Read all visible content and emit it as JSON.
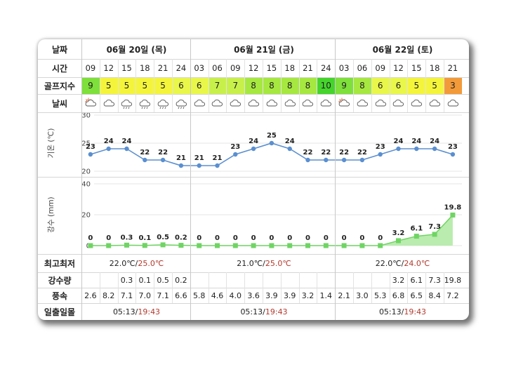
{
  "row_labels": {
    "date": "날짜",
    "time": "시간",
    "golf_index": "골프지수",
    "weather": "날씨",
    "temp_axis": "기온 (℃)",
    "rain_axis": "강수 (mm)",
    "minmax": "최고최저",
    "precip": "강수량",
    "wind": "풍속",
    "sun": "일출일몰"
  },
  "days": [
    {
      "label": "06월 20일 (목)",
      "minmax_low": "22.0℃",
      "minmax_sep": "/",
      "minmax_high": "25.0℃",
      "sunrise": "05:13",
      "sunset": "19:43"
    },
    {
      "label": "06월 21일 (금)",
      "minmax_low": "21.0℃",
      "minmax_sep": "/",
      "minmax_high": "25.0℃",
      "sunrise": "05:13",
      "sunset": "19:43"
    },
    {
      "label": "06월 22일 (토)",
      "minmax_low": "22.0℃",
      "minmax_sep": "/",
      "minmax_high": "24.0℃",
      "sunrise": "05:13",
      "sunset": "19:43"
    }
  ],
  "hours": [
    "09",
    "12",
    "15",
    "18",
    "21",
    "24",
    "03",
    "06",
    "09",
    "12",
    "15",
    "18",
    "21",
    "24",
    "03",
    "06",
    "09",
    "12",
    "15",
    "18",
    "21"
  ],
  "golf": [
    "9",
    "5",
    "5",
    "5",
    "5",
    "6",
    "6",
    "7",
    "7",
    "8",
    "8",
    "8",
    "8",
    "10",
    "9",
    "8",
    "6",
    "6",
    "5",
    "5",
    "3"
  ],
  "golf_colors": [
    "#7ee03a",
    "#f4f53a",
    "#f4f53a",
    "#f4f53a",
    "#f4f53a",
    "#e9f74a",
    "#e9f74a",
    "#c8f04a",
    "#c8f04a",
    "#a6e840",
    "#a6e840",
    "#a6e840",
    "#a6e840",
    "#45d42c",
    "#7ee03a",
    "#a6e840",
    "#e9f74a",
    "#e9f74a",
    "#f4f53a",
    "#f4f53a",
    "#f29a3a"
  ],
  "weather_icons": [
    "sun-cloud-icon",
    "cloud-icon",
    "cloud-rain-icon",
    "cloud-rain-icon",
    "cloud-rain-icon",
    "cloud-rain-icon",
    "cloud-icon",
    "cloud-icon",
    "cloud-icon",
    "cloud-icon",
    "cloud-icon",
    "cloud-icon",
    "cloud-icon",
    "cloud-icon",
    "sun-cloud-icon",
    "cloud-icon",
    "cloud-icon",
    "cloud-icon",
    "cloud-icon",
    "cloud-icon",
    "cloud-icon"
  ],
  "precip": [
    "",
    "",
    "0.3",
    "0.1",
    "0.5",
    "0.2",
    "",
    "",
    "",
    "",
    "",
    "",
    "",
    "",
    "",
    "",
    "",
    "3.2",
    "6.1",
    "7.3",
    "19.8"
  ],
  "wind": [
    "2.6",
    "8.2",
    "7.1",
    "7.0",
    "7.1",
    "6.6",
    "5.8",
    "4.6",
    "4.0",
    "3.6",
    "3.9",
    "3.9",
    "3.2",
    "1.4",
    "2.1",
    "3.0",
    "5.3",
    "6.8",
    "6.5",
    "8.4",
    "7.2"
  ],
  "chart_data": [
    {
      "type": "line",
      "x": [
        "09",
        "12",
        "15",
        "18",
        "21",
        "24",
        "03",
        "06",
        "09",
        "12",
        "15",
        "18",
        "21",
        "24",
        "03",
        "06",
        "09",
        "12",
        "15",
        "18",
        "21"
      ],
      "values": [
        23,
        24,
        24,
        22,
        22,
        21,
        21,
        21,
        23,
        24,
        25,
        24,
        22,
        22,
        22,
        22,
        23,
        24,
        24,
        24,
        23
      ],
      "labels": [
        "23",
        "24",
        "24",
        "22",
        "22",
        "21",
        "21",
        "21",
        "23",
        "24",
        "25",
        "24",
        "22",
        "22",
        "22",
        "22",
        "23",
        "24",
        "24",
        "24",
        "23"
      ],
      "ylabel": "기온 (℃)",
      "ylim": [
        20,
        30
      ],
      "yticks": [
        "20",
        "25",
        "30"
      ],
      "color": "#5a8fd0"
    },
    {
      "type": "area",
      "x": [
        "09",
        "12",
        "15",
        "18",
        "21",
        "24",
        "03",
        "06",
        "09",
        "12",
        "15",
        "18",
        "21",
        "24",
        "03",
        "06",
        "09",
        "12",
        "15",
        "18",
        "21"
      ],
      "values": [
        0,
        0,
        0.3,
        0.1,
        0.5,
        0.2,
        0,
        0,
        0,
        0,
        0,
        0,
        0,
        0,
        0,
        0,
        0,
        3.2,
        6.1,
        7.3,
        19.8
      ],
      "labels": [
        "0",
        "0",
        "0.3",
        "0.1",
        "0.5",
        "0.2",
        "0",
        "0",
        "0",
        "0",
        "0",
        "0",
        "0",
        "0",
        "0",
        "0",
        "0",
        "3.2",
        "6.1",
        "7.3",
        "19.8"
      ],
      "ylabel": "강수 (mm)",
      "ylim": [
        0,
        40
      ],
      "yticks": [
        "0",
        "20",
        "40"
      ],
      "color": "#6fd463"
    }
  ]
}
